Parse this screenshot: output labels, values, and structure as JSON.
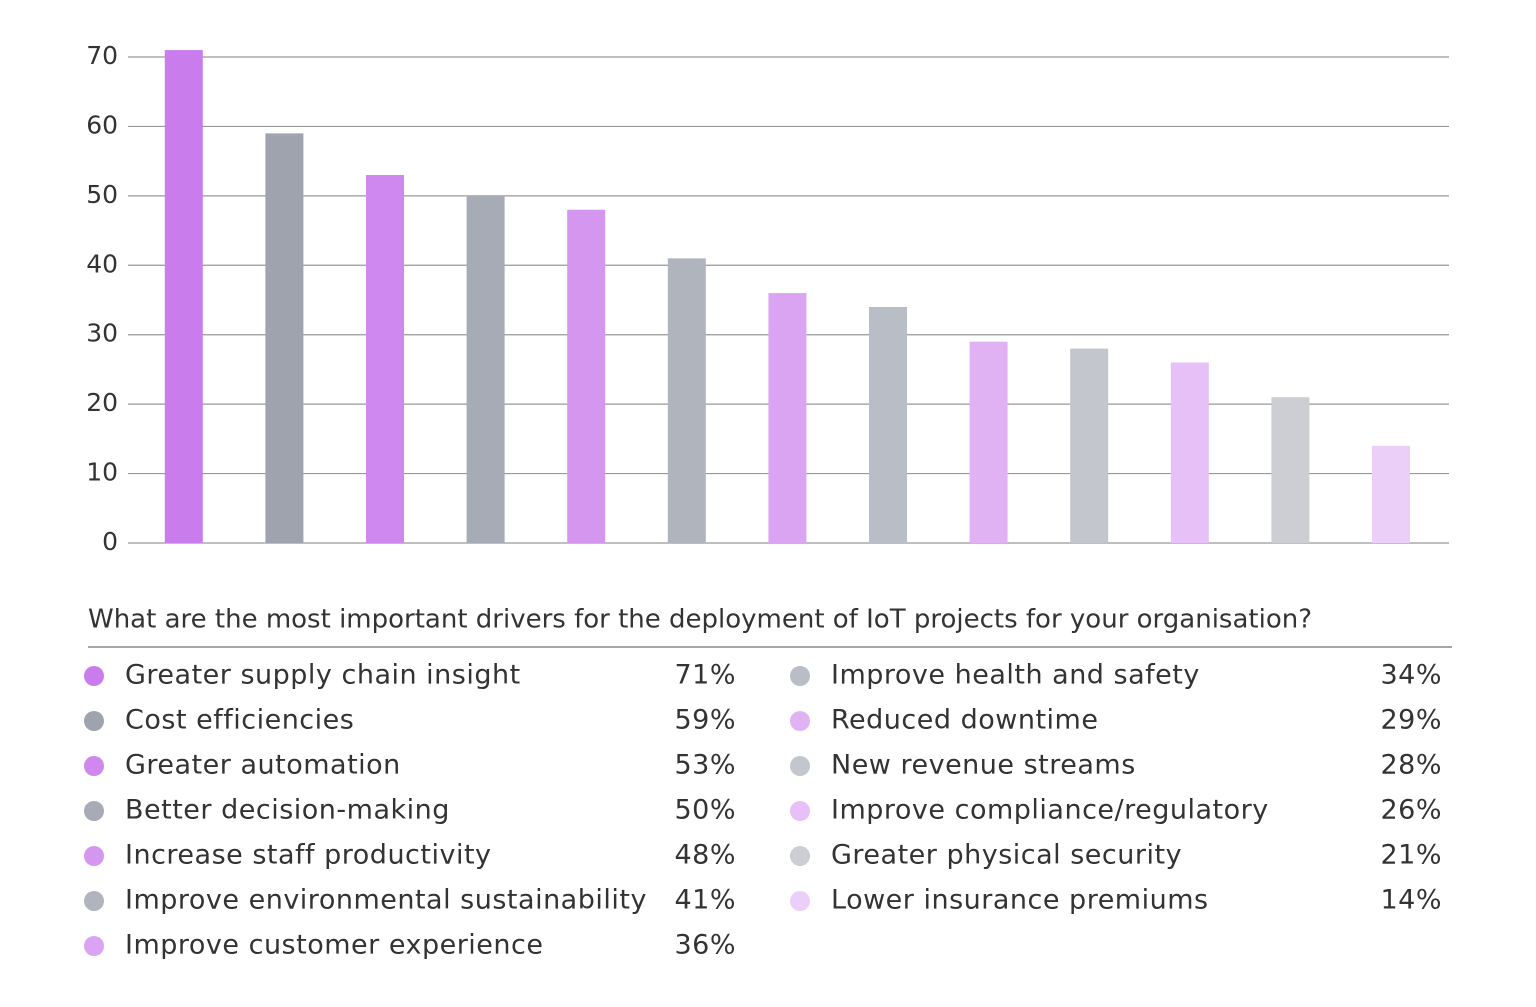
{
  "chart_data": {
    "type": "bar",
    "title": "What are the most important drivers for the deployment of IoT projects for your organisation?",
    "categories": [
      "Greater supply chain insight",
      "Cost efficiencies",
      "Greater automation",
      "Better decision-making",
      "Increase staff productivity",
      "Improve environmental sustainability",
      "Improve customer experience",
      "Improve health and safety",
      "Reduced downtime",
      "New revenue streams",
      "Improve compliance/regulatory",
      "Greater physical security",
      "Lower insurance premiums"
    ],
    "values": [
      71,
      59,
      53,
      50,
      48,
      41,
      36,
      34,
      29,
      28,
      26,
      21,
      14
    ],
    "value_labels": [
      "71%",
      "59%",
      "53%",
      "50%",
      "48%",
      "41%",
      "36%",
      "34%",
      "29%",
      "28%",
      "26%",
      "21%",
      "14%"
    ],
    "colors": [
      "#c97ded",
      "#9ea3ae",
      "#cf88ef",
      "#a7abb5",
      "#d596f0",
      "#b0b4bd",
      "#dba4f2",
      "#b9bdc5",
      "#e0b2f4",
      "#c3c6cd",
      "#e6c0f6",
      "#ccced4",
      "#eccff8"
    ],
    "ylim": [
      0,
      70
    ],
    "yticks": [
      0,
      10,
      20,
      30,
      40,
      50,
      60,
      70
    ],
    "grid": true
  }
}
